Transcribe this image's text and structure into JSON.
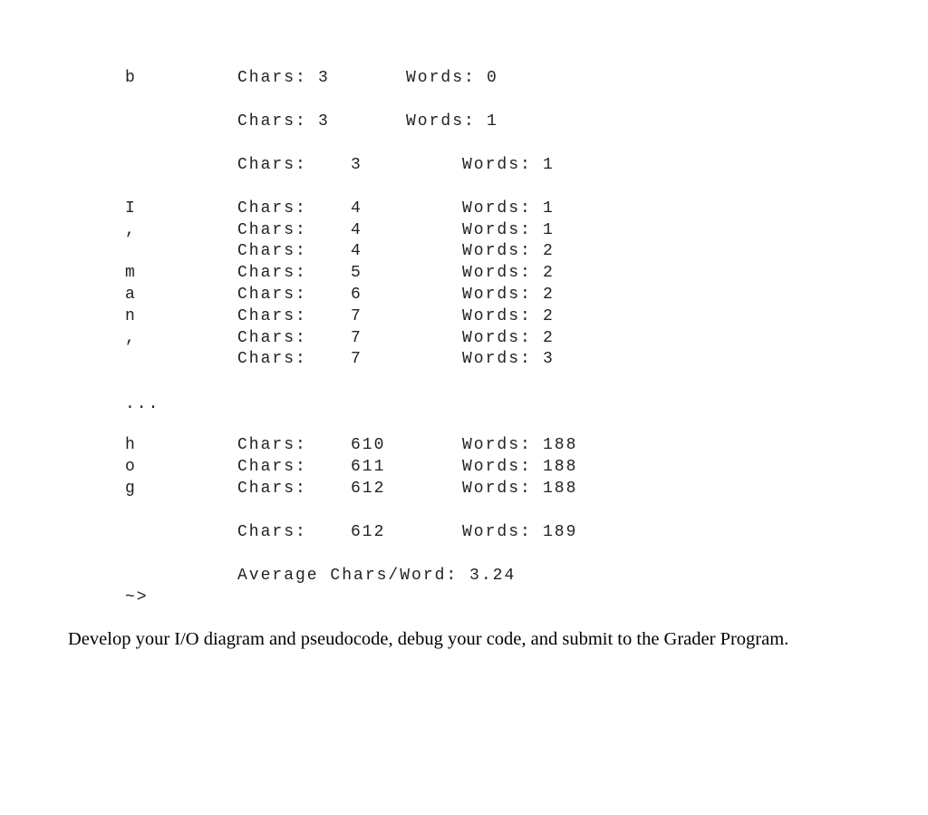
{
  "output": {
    "chars_label": "Chars:",
    "words_label": "Words:",
    "rows": [
      {
        "ch": "b",
        "chars": "3",
        "words": "0",
        "style": "narrow"
      },
      {
        "ch": "",
        "chars": "3",
        "words": "1",
        "style": "narrow"
      },
      {
        "ch": "",
        "chars": "3",
        "words": "1",
        "style": "wide"
      },
      {
        "ch": "I",
        "chars": "4",
        "words": "1",
        "style": "wide"
      },
      {
        "ch": ",",
        "chars": "4",
        "words": "1",
        "style": "wide"
      },
      {
        "ch": "",
        "chars": "4",
        "words": "2",
        "style": "wide"
      },
      {
        "ch": "m",
        "chars": "5",
        "words": "2",
        "style": "wide"
      },
      {
        "ch": "a",
        "chars": "6",
        "words": "2",
        "style": "wide"
      },
      {
        "ch": "n",
        "chars": "7",
        "words": "2",
        "style": "wide"
      },
      {
        "ch": ",",
        "chars": "7",
        "words": "2",
        "style": "wide"
      },
      {
        "ch": "",
        "chars": "7",
        "words": "3",
        "style": "wide"
      },
      {
        "ch": "h",
        "chars": "610",
        "words": "188",
        "style": "wide"
      },
      {
        "ch": "o",
        "chars": "611",
        "words": "188",
        "style": "wide"
      },
      {
        "ch": "g",
        "chars": "612",
        "words": "188",
        "style": "wide"
      },
      {
        "ch": "",
        "chars": "612",
        "words": "189",
        "style": "wide"
      }
    ],
    "ellipsis": "...",
    "average": "Average Chars/Word: 3.24",
    "prompt": "~>"
  },
  "instruction": "Develop your I/O diagram and pseudocode, debug your code, and submit to the Grader Program."
}
